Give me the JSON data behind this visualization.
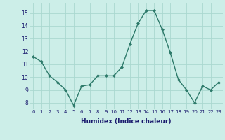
{
  "x": [
    0,
    1,
    2,
    3,
    4,
    5,
    6,
    7,
    8,
    9,
    10,
    11,
    12,
    13,
    14,
    15,
    16,
    17,
    18,
    19,
    20,
    21,
    22,
    23
  ],
  "y": [
    11.6,
    11.2,
    10.1,
    9.6,
    9.0,
    7.8,
    9.3,
    9.4,
    10.1,
    10.1,
    10.1,
    10.8,
    12.6,
    14.2,
    15.2,
    15.2,
    13.7,
    11.9,
    9.8,
    9.0,
    8.0,
    9.3,
    9.0,
    9.6
  ],
  "xlabel": "Humidex (Indice chaleur)",
  "ylim": [
    7.5,
    15.8
  ],
  "xlim": [
    -0.5,
    23.5
  ],
  "yticks": [
    8,
    9,
    10,
    11,
    12,
    13,
    14,
    15
  ],
  "xticks": [
    0,
    1,
    2,
    3,
    4,
    5,
    6,
    7,
    8,
    9,
    10,
    11,
    12,
    13,
    14,
    15,
    16,
    17,
    18,
    19,
    20,
    21,
    22,
    23
  ],
  "line_color": "#2d7a6a",
  "marker_color": "#2d7a6a",
  "bg_color": "#cceee8",
  "grid_color": "#aad8d0",
  "xlabel_color": "#1a1a6e",
  "tick_color": "#1a1a6e",
  "ytick_fontsize": 5.5,
  "xtick_fontsize": 5.0,
  "xlabel_fontsize": 6.5
}
